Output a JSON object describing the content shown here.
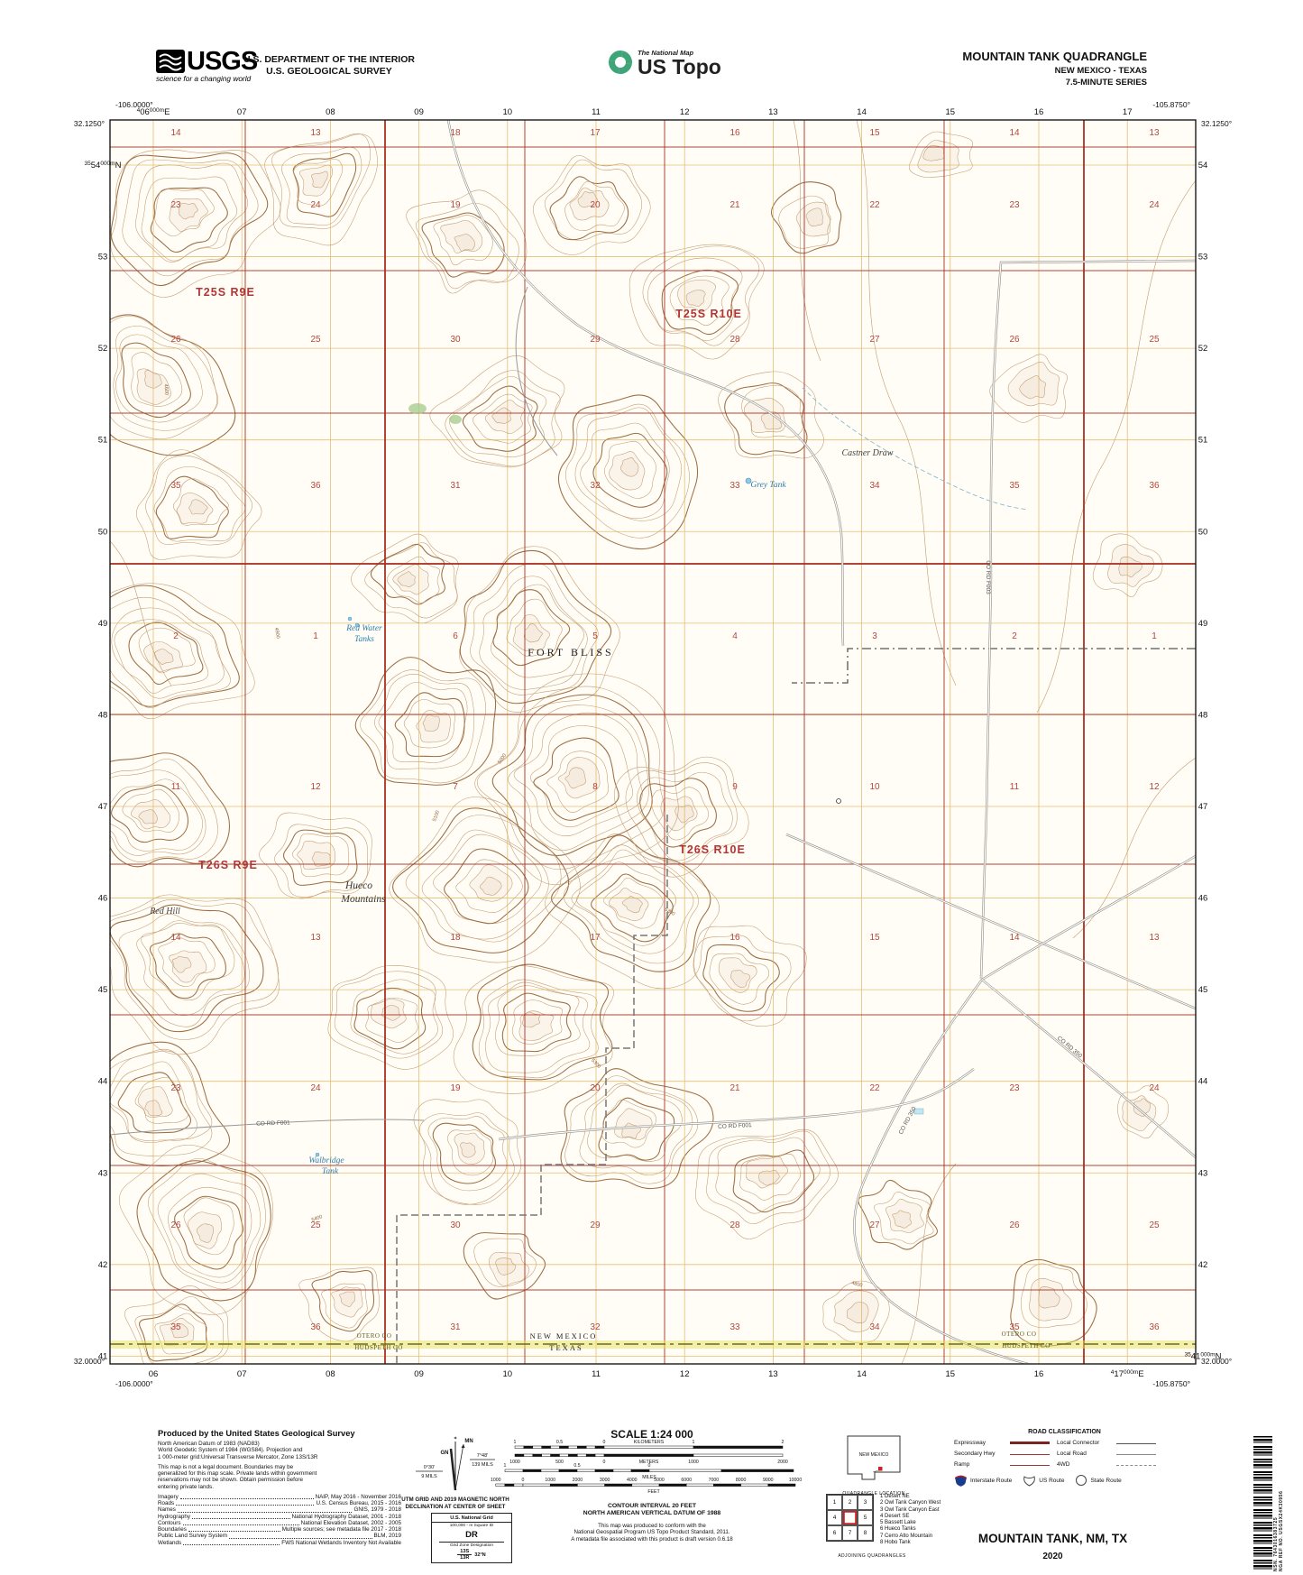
{
  "colors": {
    "grid_red": "#a93226",
    "utm_orange": "#dca94b",
    "contour_brown": "#c19b72",
    "contour_index": "#9c6f45",
    "water_blue": "#2e7fae",
    "state_line_olive": "#6b6b22",
    "usgs_green": "#3fa579"
  },
  "header": {
    "usgs": {
      "acronym": "USGS",
      "tagline": "science for a changing world"
    },
    "dept1": "U.S. DEPARTMENT OF THE INTERIOR",
    "dept2": "U.S. GEOLOGICAL SURVEY",
    "ustopo": {
      "small": "The National Map",
      "large": "US Topo"
    },
    "title": "MOUNTAIN TANK QUADRANGLE",
    "subtitle1": "NEW MEXICO - TEXAS",
    "subtitle2": "7.5-MINUTE SERIES"
  },
  "map": {
    "geo_corners": {
      "tl_lon": "-106.0000°",
      "tl_lat": "32.1250°",
      "tr_lon": "-105.8750°",
      "tr_lat": "32.1250°",
      "bl_lat": "32.0000°",
      "bl_lon": "-106.0000°",
      "br_lat": "32.0000°",
      "br_lon": "-105.8750°"
    },
    "utm_top": {
      "full": {
        "sup1": "4",
        "main": "06",
        "sup2": "000m",
        "suffix": "E"
      },
      "ticks": [
        "07",
        "08",
        "09",
        "10",
        "11",
        "12",
        "13",
        "14",
        "15",
        "16",
        "17"
      ]
    },
    "utm_bottom": {
      "ticks": [
        "06",
        "07",
        "08",
        "09",
        "10",
        "11",
        "12",
        "13",
        "14",
        "15",
        "16"
      ],
      "full": {
        "sup1": "4",
        "main": "17",
        "sup2": "000m",
        "suffix": "E"
      }
    },
    "utm_left": {
      "full": {
        "sup1": "35",
        "main": "54",
        "sup2": "000m",
        "suffix": "N"
      },
      "ticks": [
        "53",
        "52",
        "51",
        "50",
        "49",
        "48",
        "47",
        "46",
        "45",
        "44",
        "43",
        "42",
        "41"
      ]
    },
    "utm_right": {
      "ticks": [
        "54",
        "53",
        "52",
        "51",
        "50",
        "49",
        "48",
        "47",
        "46",
        "45",
        "44",
        "43",
        "42"
      ],
      "full": {
        "sup1": "35",
        "main": "41",
        "sup2": "000m",
        "suffix": "N"
      }
    },
    "townships": [
      "T25S R9E",
      "T25S R10E",
      "T26S R9E",
      "T26S R10E"
    ],
    "section_rows": [
      [
        "14",
        "13",
        "18",
        "17",
        "16",
        "15",
        "14",
        "13"
      ],
      [
        "23",
        "24",
        "19",
        "20",
        "21",
        "22",
        "23",
        "24"
      ],
      [
        "26",
        "25",
        "30",
        "29",
        "28",
        "27",
        "26",
        "25"
      ],
      [
        "35",
        "36",
        "31",
        "32",
        "33",
        "34",
        "35",
        "36"
      ],
      [
        "2",
        "1",
        "6",
        "5",
        "4",
        "3",
        "2",
        "1"
      ],
      [
        "11",
        "12",
        "7",
        "8",
        "9",
        "10",
        "11",
        "12"
      ],
      [
        "14",
        "13",
        "18",
        "17",
        "16",
        "15",
        "14",
        "13"
      ],
      [
        "23",
        "24",
        "19",
        "20",
        "21",
        "22",
        "23",
        "24"
      ],
      [
        "26",
        "25",
        "30",
        "29",
        "28",
        "27",
        "26",
        "25"
      ],
      [
        "35",
        "36",
        "31",
        "32",
        "33",
        "34",
        "35",
        "36"
      ]
    ],
    "place_labels": {
      "fort_bliss": "FORT BLISS",
      "hueco1": "Hueco",
      "hueco2": "Mountains",
      "red_hill": "Red Hill",
      "castner": "Castner Draw"
    },
    "water_labels": {
      "grey_tank": "Grey Tank",
      "red_water1": "Red Water",
      "red_water2": "Tanks",
      "walbridge1": "Walbridge",
      "walbridge2": "Tank"
    },
    "road_labels": [
      "CO RD F001",
      "CO RD F001",
      "CO RD 350",
      "CO RD 350",
      "CO RD F003"
    ],
    "elev_labels": [
      "5000",
      "5200",
      "4900",
      "5400",
      "4600",
      "5300",
      "5100",
      "4800"
    ],
    "boundary_labels": {
      "state_n": "NEW MEXICO",
      "state_s": "TEXAS",
      "county_left_n": "OTERO CO",
      "county_left_s": "HUDSPETH CO",
      "county_right_n": "OTERO CO",
      "county_right_s": "HUDSPETH CO"
    }
  },
  "footer": {
    "produced_by": "Produced by the United States Geological Survey",
    "datum_lines": [
      "North American Datum of 1983 (NAD83)",
      "World Geodetic System of 1984 (WGS84).  Projection and",
      "1 000-meter grid:Universal Transverse Mercator, Zone 13S/13R"
    ],
    "legal_lines": [
      "This map is not a legal document. Boundaries may be",
      "generalized for this map scale. Private lands within government",
      "reservations may not be shown. Obtain permission before",
      "entering private lands."
    ],
    "sources": [
      {
        "name": "Imagery",
        "value": "NAIP, May 2016 - November 2016"
      },
      {
        "name": "Roads",
        "value": "U.S. Census Bureau, 2015 - 2016"
      },
      {
        "name": "Names",
        "value": "GNIS, 1979 - 2018"
      },
      {
        "name": "Hydrography",
        "value": "National Hydrography Dataset, 2001 - 2018"
      },
      {
        "name": "Contours",
        "value": "National Elevation Dataset, 2002 - 2005"
      },
      {
        "name": "Boundaries",
        "value": "Multiple sources; see metadata file 2017 - 2018"
      },
      {
        "name": "Public Land Survey System",
        "value": "BLM, 2019"
      },
      {
        "name": "Wetlands",
        "value": "FWS National Wetlands Inventory Not Available"
      }
    ],
    "declination": {
      "star": "✶",
      "mn": "MN",
      "gn": "GN",
      "mn_angle": "7°48'",
      "mn_mils": "139 MILS",
      "gn_angle": "0°30'",
      "gn_mils": "9 MILS",
      "caption1": "UTM GRID AND 2019 MAGNETIC NORTH",
      "caption2": "DECLINATION AT CENTER OF SHEET"
    },
    "usng": {
      "title": "U.S. National Grid",
      "sq_label": "100,000 - m Square ID",
      "square": "DR",
      "gzd_label": "Grid Zone Designation",
      "zone_top": "13S",
      "zone_bottom": "13R",
      "lat": "32°N"
    },
    "scale": {
      "title": "SCALE 1:24 000",
      "km": {
        "labels": [
          "1",
          "0.5",
          "0",
          "KILOMETERS",
          "1",
          "2"
        ]
      },
      "m": {
        "labels": [
          "1000",
          "500",
          "0",
          "METERS",
          "1000",
          "2000"
        ]
      },
      "mi": {
        "labels": [
          "1",
          "0.5",
          "0"
        ],
        "title": "MILES"
      },
      "ft": {
        "labels": [
          "1000",
          "0",
          "1000",
          "2000",
          "3000",
          "4000",
          "5000",
          "6000",
          "7000",
          "8000",
          "9000",
          "10000"
        ],
        "title": "FEET"
      }
    },
    "contour_note1": "CONTOUR INTERVAL 20 FEET",
    "contour_note2": "NORTH AMERICAN VERTICAL DATUM OF 1988",
    "conformance": [
      "This map was produced to conform with the",
      "National Geospatial Program US Topo Product Standard, 2011.",
      "A metadata file associated with this product is draft version 0.6.18"
    ],
    "quad_location": {
      "state": "NEW MEXICO",
      "caption": "QUADRANGLE LOCATION"
    },
    "adjoining": {
      "caption": "ADJOINING QUADRANGLES",
      "cells": [
        "1",
        "2",
        "3",
        "4",
        "",
        "5",
        "6",
        "7",
        "8"
      ],
      "list": [
        "1 Desert NE",
        "2 Owl Tank Canyon West",
        "3 Owl Tank Canyon East",
        "4 Desert SE",
        "5 Bassett Lake",
        "6 Hueco Tanks",
        "7 Cerro Alto Mountain",
        "8 Hobo Tank"
      ]
    },
    "roadclass": {
      "title": "ROAD CLASSIFICATION",
      "rows": [
        [
          "Expressway",
          "Local Connector"
        ],
        [
          "Secondary Hwy",
          "Local Road"
        ],
        [
          "Ramp",
          "4WD"
        ]
      ],
      "shields": [
        "Interstate Route",
        "US Route",
        "State Route"
      ]
    },
    "imprint_title": "MOUNTAIN TANK,  NM, TX",
    "imprint_year": "2020",
    "barcode": {
      "nsn": "NSN.  7643016383725",
      "nga": "NGA REF NO. USGSX24K30956"
    }
  }
}
